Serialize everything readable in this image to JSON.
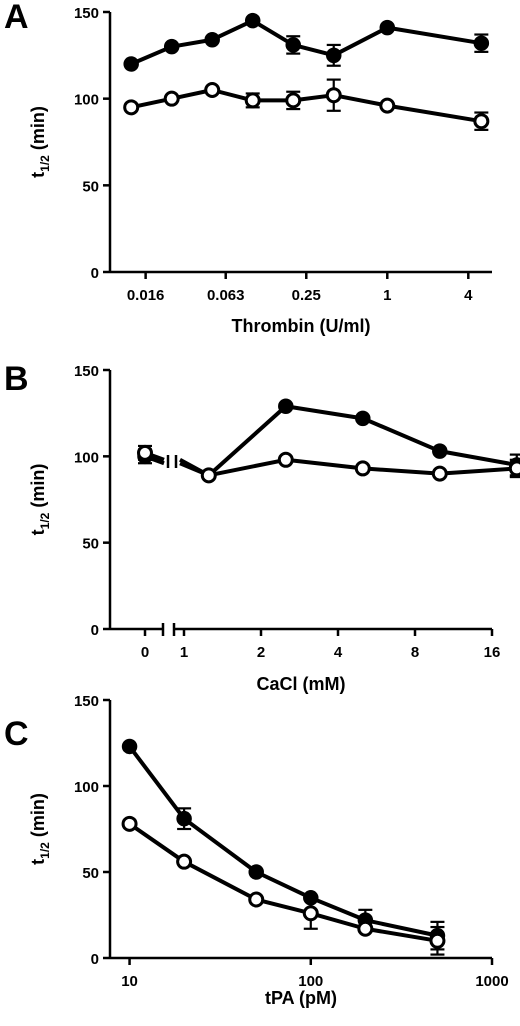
{
  "chart_data": [
    {
      "panel": "A",
      "type": "line",
      "xlabel": "Thrombin (U/ml)",
      "ylabel_main": "t",
      "ylabel_sub": "1/2",
      "ylabel_tail": " (min)",
      "ylim": [
        0,
        150
      ],
      "yticks": [
        0,
        50,
        100,
        150
      ],
      "x_scale": "log2",
      "xlim": [
        0.009,
        6
      ],
      "xticks": [
        0.016,
        0.063,
        0.25,
        1,
        4
      ],
      "xtick_labels": [
        "0.016",
        "0.063",
        "0.25",
        "1",
        "4"
      ],
      "series": [
        {
          "marker": "filled",
          "x": [
            0.0125,
            0.025,
            0.05,
            0.1,
            0.2,
            0.4,
            1,
            5
          ],
          "y": [
            120,
            130,
            134,
            145,
            131,
            125,
            141,
            132
          ],
          "err": [
            0,
            0,
            0,
            0,
            5,
            6,
            0,
            5
          ]
        },
        {
          "marker": "open",
          "x": [
            0.0125,
            0.025,
            0.05,
            0.1,
            0.2,
            0.4,
            1,
            5
          ],
          "y": [
            95,
            100,
            105,
            99,
            99,
            102,
            96,
            87
          ],
          "err": [
            0,
            0,
            0,
            4,
            5,
            9,
            0,
            5
          ]
        }
      ]
    },
    {
      "panel": "B",
      "type": "line",
      "xlabel": "CaCl (mM)",
      "ylabel_main": "t",
      "ylabel_sub": "1/2",
      "ylabel_tail": " (min)",
      "ylim": [
        0,
        150
      ],
      "yticks": [
        0,
        50,
        100,
        150
      ],
      "x_scale": "log2-broken",
      "xticks": [
        0,
        1,
        2,
        4,
        8,
        16
      ],
      "xtick_labels": [
        "0",
        "1",
        "2",
        "4",
        "8",
        "16"
      ],
      "series": [
        {
          "marker": "filled",
          "x": [
            0,
            1.25,
            2.5,
            5,
            10,
            20
          ],
          "y": [
            100,
            89,
            129,
            122,
            103,
            95
          ],
          "err": [
            4,
            0,
            0,
            0,
            0,
            6
          ]
        },
        {
          "marker": "open",
          "x": [
            0,
            1.25,
            2.5,
            5,
            10,
            20
          ],
          "y": [
            102,
            89,
            98,
            93,
            90,
            93
          ],
          "err": [
            4,
            0,
            0,
            0,
            0,
            5
          ]
        }
      ]
    },
    {
      "panel": "C",
      "type": "line",
      "xlabel": "tPA (pM)",
      "ylabel_main": "t",
      "ylabel_sub": "1/2",
      "ylabel_tail": " (min)",
      "ylim": [
        0,
        150
      ],
      "yticks": [
        0,
        50,
        100,
        150
      ],
      "x_scale": "log10",
      "xlim": [
        8,
        1000
      ],
      "xticks": [
        10,
        100,
        1000
      ],
      "xtick_labels": [
        "10",
        "100",
        "1000"
      ],
      "series": [
        {
          "marker": "filled",
          "x": [
            10,
            20,
            50,
            100,
            200,
            500
          ],
          "y": [
            123,
            81,
            50,
            35,
            22,
            13
          ],
          "err": [
            0,
            6,
            0,
            0,
            6,
            8
          ]
        },
        {
          "marker": "open",
          "x": [
            10,
            20,
            50,
            100,
            200,
            500
          ],
          "y": [
            78,
            56,
            34,
            26,
            17,
            10
          ],
          "err": [
            0,
            0,
            0,
            9,
            0,
            8
          ]
        }
      ]
    }
  ]
}
